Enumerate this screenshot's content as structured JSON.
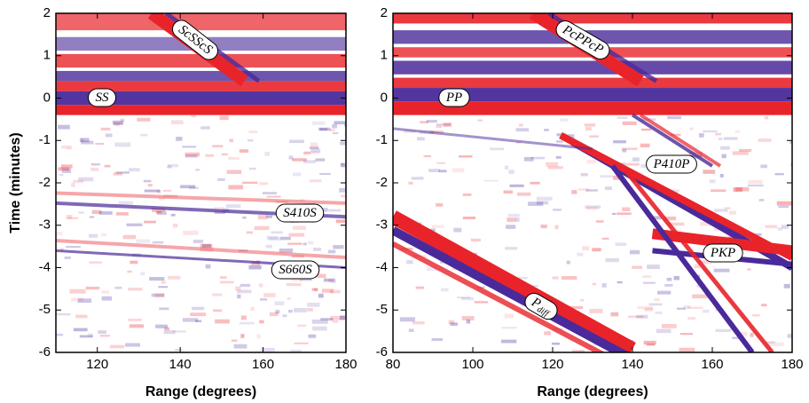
{
  "chart_data": [
    {
      "type": "image",
      "xlabel": "Range (degrees)",
      "ylabel": "Time (minutes)",
      "xlim": [
        110,
        180
      ],
      "xticks": [
        120,
        140,
        160,
        180
      ],
      "ylim": [
        -6,
        2
      ],
      "yticks": [
        2,
        1,
        0,
        -1,
        -2,
        -3,
        -4,
        -5,
        -6
      ],
      "annotations": [
        {
          "text": "ScSScS"
        },
        {
          "text": "SS"
        },
        {
          "text": "S410S"
        },
        {
          "text": "S660S"
        }
      ]
    },
    {
      "type": "image",
      "xlabel": "Range (degrees)",
      "xlim": [
        80,
        180
      ],
      "xticks": [
        80,
        100,
        120,
        140,
        160,
        180
      ],
      "ylim": [
        -6,
        2
      ],
      "yticks": [
        2,
        1,
        0,
        -1,
        -2,
        -3,
        -4,
        -5,
        -6
      ],
      "annotations": [
        {
          "text": "PcPPcP"
        },
        {
          "text": "PP"
        },
        {
          "text": "P410P"
        },
        {
          "text": "PKP"
        },
        {
          "text": "P",
          "subscript": "diff"
        }
      ]
    }
  ]
}
